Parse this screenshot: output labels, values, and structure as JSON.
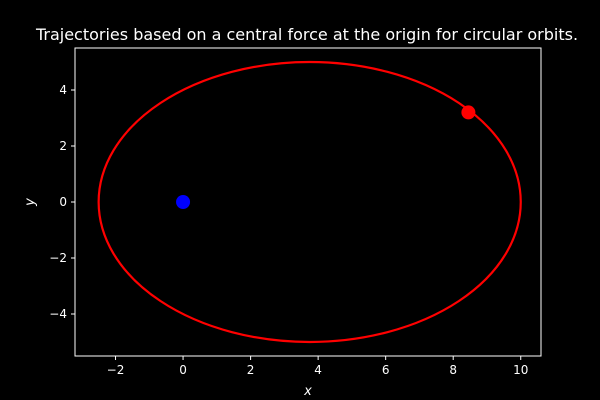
{
  "chart_data": {
    "type": "line",
    "title": "Trajectories based on a central force at the origin for circular orbits.",
    "xlabel": "x",
    "ylabel": "y",
    "xlim": [
      -3.2,
      10.6
    ],
    "ylim": [
      -5.5,
      5.5
    ],
    "x_ticks": [
      -2,
      0,
      2,
      4,
      6,
      8,
      10
    ],
    "y_ticks": [
      -4,
      -2,
      0,
      2,
      4
    ],
    "x_tick_labels": [
      "−2",
      "0",
      "2",
      "4",
      "6",
      "8",
      "10"
    ],
    "y_tick_labels": [
      "−4",
      "−2",
      "0",
      "2",
      "4"
    ],
    "grid": false,
    "orbit": {
      "shape": "ellipse",
      "center": [
        3.75,
        0
      ],
      "semi_major_axis": 6.25,
      "semi_minor_axis": 5.0,
      "focus": [
        0,
        0
      ],
      "x_range": [
        -2.5,
        10
      ],
      "y_range": [
        -5,
        5
      ],
      "color": "#ff0000"
    },
    "points": [
      {
        "name": "origin",
        "x": 0,
        "y": 0,
        "color": "#0000ff"
      },
      {
        "name": "body",
        "x": 8.45,
        "y": 3.2,
        "color": "#ff0000"
      }
    ],
    "colors": {
      "background": "#000000",
      "axes": "#ffffff",
      "text": "#ffffff",
      "orbit": "#ff0000",
      "origin_marker": "#0000ff",
      "body_marker": "#ff0000"
    }
  }
}
